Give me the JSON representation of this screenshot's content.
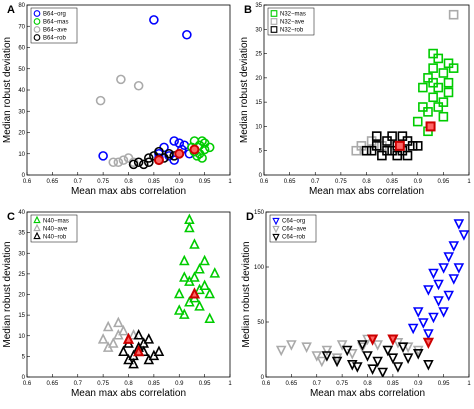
{
  "chart_data": [
    {
      "panel": "A",
      "type": "scatter",
      "xlabel": "Mean max abs correlation",
      "ylabel": "Median robust deviation",
      "xlim": [
        0.6,
        1
      ],
      "ylim": [
        0,
        80
      ],
      "xticks": [
        0.6,
        0.65,
        0.7,
        0.75,
        0.8,
        0.85,
        0.9,
        0.95,
        1
      ],
      "yticks": [
        0,
        10,
        20,
        30,
        40,
        50,
        60,
        70,
        80
      ],
      "legend": "top-left",
      "marker": "circle",
      "series": [
        {
          "name": "B64−org",
          "color": "#0000ff",
          "points": [
            [
              0.85,
              73
            ],
            [
              0.915,
              66
            ],
            [
              0.75,
              9
            ],
            [
              0.86,
              10
            ],
            [
              0.89,
              16
            ],
            [
              0.905,
              12
            ],
            [
              0.92,
              10
            ],
            [
              0.87,
              13
            ],
            [
              0.9,
              15
            ],
            [
              0.88,
              9
            ],
            [
              0.93,
              11
            ],
            [
              0.86,
              8
            ],
            [
              0.91,
              14
            ],
            [
              0.89,
              7
            ]
          ]
        },
        {
          "name": "B64−mas",
          "color": "#00cc00",
          "points": [
            [
              0.93,
              11
            ],
            [
              0.94,
              14
            ],
            [
              0.945,
              16
            ],
            [
              0.95,
              12
            ],
            [
              0.935,
              9
            ],
            [
              0.925,
              13
            ],
            [
              0.95,
              15
            ],
            [
              0.94,
              10
            ],
            [
              0.96,
              13
            ],
            [
              0.93,
              16
            ],
            [
              0.945,
              8
            ]
          ]
        },
        {
          "name": "B64−ave",
          "color": "#aaaaaa",
          "points": [
            [
              0.785,
              45
            ],
            [
              0.745,
              35
            ],
            [
              0.82,
              42
            ],
            [
              0.79,
              7
            ],
            [
              0.77,
              6
            ],
            [
              0.81,
              6
            ],
            [
              0.8,
              8
            ],
            [
              0.78,
              6
            ]
          ]
        },
        {
          "name": "B64−rob",
          "color": "#000000",
          "points": [
            [
              0.82,
              6
            ],
            [
              0.84,
              8
            ],
            [
              0.86,
              7
            ],
            [
              0.85,
              9
            ],
            [
              0.83,
              5
            ],
            [
              0.87,
              8
            ],
            [
              0.88,
              10
            ],
            [
              0.86,
              11
            ],
            [
              0.84,
              6
            ],
            [
              0.89,
              9
            ],
            [
              0.81,
              5
            ]
          ]
        }
      ],
      "highlights": [
        [
          0.86,
          7
        ],
        [
          0.9,
          10
        ],
        [
          0.93,
          12
        ]
      ]
    },
    {
      "panel": "B",
      "type": "scatter",
      "xlabel": "Mean max abs correlation",
      "ylabel": "Median robust deviation",
      "xlim": [
        0.6,
        1
      ],
      "ylim": [
        0,
        35
      ],
      "xticks": [
        0.6,
        0.65,
        0.7,
        0.75,
        0.8,
        0.85,
        0.9,
        0.95,
        1
      ],
      "yticks": [
        0,
        5,
        10,
        15,
        20,
        25,
        30,
        35
      ],
      "legend": "top-left",
      "marker": "square",
      "series": [
        {
          "name": "N32−mas",
          "color": "#00cc00",
          "points": [
            [
              0.91,
              18
            ],
            [
              0.92,
              20
            ],
            [
              0.93,
              22
            ],
            [
              0.94,
              24
            ],
            [
              0.95,
              21
            ],
            [
              0.96,
              19
            ],
            [
              0.93,
              16
            ],
            [
              0.92,
              13
            ],
            [
              0.94,
              14
            ],
            [
              0.95,
              12
            ],
            [
              0.96,
              17
            ],
            [
              0.9,
              11
            ],
            [
              0.93,
              25
            ],
            [
              0.97,
              22
            ],
            [
              0.94,
              18
            ],
            [
              0.92,
              9
            ],
            [
              0.95,
              15
            ],
            [
              0.91,
              14
            ],
            [
              0.96,
              23
            ],
            [
              0.93,
              19
            ]
          ]
        },
        {
          "name": "N32−ave",
          "color": "#aaaaaa",
          "points": [
            [
              0.97,
              33
            ],
            [
              0.79,
              6
            ],
            [
              0.81,
              7
            ],
            [
              0.8,
              5
            ],
            [
              0.82,
              8
            ],
            [
              0.78,
              5
            ],
            [
              0.83,
              6
            ]
          ]
        },
        {
          "name": "N32−rob",
          "color": "#000000",
          "points": [
            [
              0.8,
              5
            ],
            [
              0.82,
              6
            ],
            [
              0.84,
              7
            ],
            [
              0.85,
              5
            ],
            [
              0.86,
              6
            ],
            [
              0.87,
              8
            ],
            [
              0.88,
              7
            ],
            [
              0.83,
              4
            ],
            [
              0.81,
              5
            ],
            [
              0.85,
              8
            ],
            [
              0.86,
              4
            ],
            [
              0.84,
              5
            ],
            [
              0.89,
              6
            ],
            [
              0.82,
              8
            ],
            [
              0.87,
              5
            ],
            [
              0.9,
              6
            ],
            [
              0.88,
              4
            ]
          ]
        }
      ],
      "highlights": [
        [
          0.865,
          6
        ],
        [
          0.925,
          10
        ]
      ]
    },
    {
      "panel": "C",
      "type": "scatter",
      "xlabel": "Mean max abs correlation",
      "ylabel": "Median robust deviation",
      "xlim": [
        0.6,
        1
      ],
      "ylim": [
        0,
        40
      ],
      "xticks": [
        0.6,
        0.65,
        0.7,
        0.75,
        0.8,
        0.85,
        0.9,
        0.95,
        1
      ],
      "yticks": [
        0,
        5,
        10,
        15,
        20,
        25,
        30,
        35,
        40
      ],
      "legend": "top-left",
      "marker": "triangle",
      "series": [
        {
          "name": "N40−mas",
          "color": "#00cc00",
          "points": [
            [
              0.92,
              36
            ],
            [
              0.93,
              32
            ],
            [
              0.91,
              28
            ],
            [
              0.94,
              26
            ],
            [
              0.95,
              22
            ],
            [
              0.9,
              20
            ],
            [
              0.92,
              18
            ],
            [
              0.93,
              24
            ],
            [
              0.96,
              20
            ],
            [
              0.91,
              15
            ],
            [
              0.94,
              17
            ],
            [
              0.92,
              23
            ],
            [
              0.95,
              28
            ],
            [
              0.97,
              25
            ],
            [
              0.9,
              16
            ],
            [
              0.93,
              19
            ],
            [
              0.96,
              14
            ],
            [
              0.94,
              21
            ],
            [
              0.91,
              24
            ],
            [
              0.92,
              38
            ]
          ]
        },
        {
          "name": "N40−ave",
          "color": "#aaaaaa",
          "points": [
            [
              0.76,
              12
            ],
            [
              0.78,
              10
            ],
            [
              0.77,
              8
            ],
            [
              0.79,
              11
            ],
            [
              0.75,
              9
            ],
            [
              0.8,
              8
            ],
            [
              0.78,
              13
            ],
            [
              0.76,
              7
            ],
            [
              0.81,
              10
            ]
          ]
        },
        {
          "name": "N40−rob",
          "color": "#000000",
          "points": [
            [
              0.79,
              6
            ],
            [
              0.8,
              8
            ],
            [
              0.81,
              5
            ],
            [
              0.82,
              7
            ],
            [
              0.83,
              6
            ],
            [
              0.84,
              9
            ],
            [
              0.8,
              4
            ],
            [
              0.85,
              5
            ],
            [
              0.82,
              10
            ],
            [
              0.86,
              6
            ],
            [
              0.81,
              3
            ],
            [
              0.83,
              8
            ],
            [
              0.84,
              4
            ]
          ]
        }
      ],
      "highlights": [
        [
          0.8,
          9
        ],
        [
          0.82,
          6
        ],
        [
          0.93,
          20
        ]
      ]
    },
    {
      "panel": "D",
      "type": "scatter",
      "xlabel": "Mean max abs correlation",
      "ylabel": "Median robust deviation",
      "xlim": [
        0.6,
        1
      ],
      "ylim": [
        0,
        150
      ],
      "xticks": [
        0.6,
        0.65,
        0.7,
        0.75,
        0.8,
        0.85,
        0.9,
        0.95,
        1
      ],
      "yticks": [
        0,
        50,
        100,
        150
      ],
      "legend": "top-left",
      "marker": "triangle-down",
      "series": [
        {
          "name": "C64−org",
          "color": "#0000ff",
          "points": [
            [
              0.9,
              60
            ],
            [
              0.92,
              80
            ],
            [
              0.93,
              95
            ],
            [
              0.95,
              100
            ],
            [
              0.96,
              110
            ],
            [
              0.97,
              90
            ],
            [
              0.98,
              140
            ],
            [
              0.94,
              70
            ],
            [
              0.91,
              50
            ],
            [
              0.95,
              60
            ],
            [
              0.97,
              120
            ],
            [
              0.92,
              40
            ],
            [
              0.96,
              75
            ],
            [
              0.89,
              45
            ],
            [
              0.93,
              55
            ],
            [
              0.98,
              100
            ],
            [
              0.99,
              130
            ],
            [
              0.94,
              85
            ]
          ]
        },
        {
          "name": "C64−ave",
          "color": "#aaaaaa",
          "points": [
            [
              0.63,
              25
            ],
            [
              0.65,
              30
            ],
            [
              0.68,
              28
            ],
            [
              0.7,
              20
            ],
            [
              0.72,
              25
            ],
            [
              0.75,
              30
            ],
            [
              0.77,
              22
            ],
            [
              0.79,
              28
            ],
            [
              0.8,
              35
            ],
            [
              0.82,
              30
            ],
            [
              0.84,
              25
            ],
            [
              0.86,
              32
            ],
            [
              0.88,
              28
            ],
            [
              0.9,
              25
            ],
            [
              0.71,
              15
            ],
            [
              0.74,
              18
            ]
          ]
        },
        {
          "name": "C64−rob",
          "color": "#000000",
          "points": [
            [
              0.72,
              20
            ],
            [
              0.74,
              15
            ],
            [
              0.76,
              25
            ],
            [
              0.78,
              10
            ],
            [
              0.8,
              20
            ],
            [
              0.82,
              15
            ],
            [
              0.84,
              25
            ],
            [
              0.86,
              10
            ],
            [
              0.88,
              18
            ],
            [
              0.9,
              22
            ],
            [
              0.92,
              12
            ],
            [
              0.79,
              30
            ],
            [
              0.83,
              5
            ],
            [
              0.87,
              28
            ],
            [
              0.81,
              8
            ],
            [
              0.85,
              18
            ],
            [
              0.77,
              12
            ]
          ]
        }
      ],
      "highlights": [
        [
          0.81,
          35
        ],
        [
          0.85,
          35
        ],
        [
          0.92,
          32
        ]
      ]
    }
  ]
}
